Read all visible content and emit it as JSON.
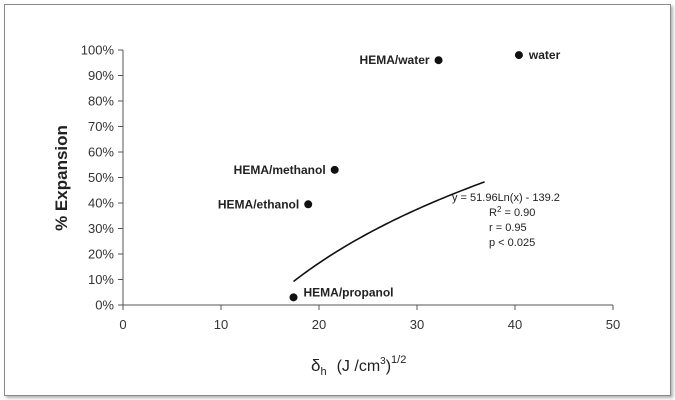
{
  "chart_data": {
    "type": "scatter",
    "ylabel": "% Expansion",
    "xlabel_parts": {
      "delta": "δ",
      "sub": "h",
      "unit": "(J /cm",
      "sup3": "3",
      "close": ")",
      "sup": "1/2"
    },
    "x_ticks": [
      "0",
      "10",
      "20",
      "30",
      "40",
      "50"
    ],
    "y_ticks": [
      "0%",
      "10%",
      "20%",
      "30%",
      "40%",
      "50%",
      "60%",
      "70%",
      "80%",
      "90%",
      "100%"
    ],
    "xlim": [
      0,
      50
    ],
    "ylim": [
      0,
      100
    ],
    "grid": false,
    "points": [
      {
        "label": "HEMA/water",
        "x": 32.2,
        "y": 96
      },
      {
        "label": "water",
        "x": 40.4,
        "y": 98
      },
      {
        "label": "HEMA/methanol",
        "x": 21.6,
        "y": 53
      },
      {
        "label": "HEMA/ethanol",
        "x": 18.9,
        "y": 39.5
      },
      {
        "label": "HEMA/propanol",
        "x": 17.4,
        "y": 3
      }
    ],
    "fit": {
      "type": "log",
      "a": 51.96,
      "b": -139.2,
      "x_range": [
        17.4,
        36.9
      ]
    },
    "annotation": {
      "equation": "y = 51.96Ln(x) - 139.2",
      "r2_prefix": "R",
      "r2_sup": "2",
      "r2_value": " = 0.90",
      "r": "r  = 0.95",
      "p": "p  < 0.025"
    }
  }
}
